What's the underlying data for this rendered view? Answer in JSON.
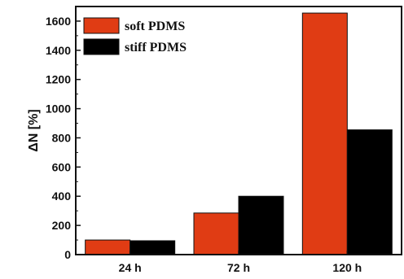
{
  "chart_data": {
    "type": "bar",
    "categories": [
      "24 h",
      "72 h",
      "120 h"
    ],
    "series": [
      {
        "name": "soft PDMS",
        "values": [
          100,
          285,
          1655
        ],
        "color": "#e03c14"
      },
      {
        "name": "stiff PDMS",
        "values": [
          95,
          400,
          855
        ],
        "color": "#000000"
      }
    ],
    "xlabel": "",
    "ylabel": "ΔN [%]",
    "ylim": [
      0,
      1700
    ],
    "yticks": [
      0,
      200,
      400,
      600,
      800,
      1000,
      1200,
      1400,
      1600
    ],
    "grid": false,
    "legend_position": "top-left"
  }
}
